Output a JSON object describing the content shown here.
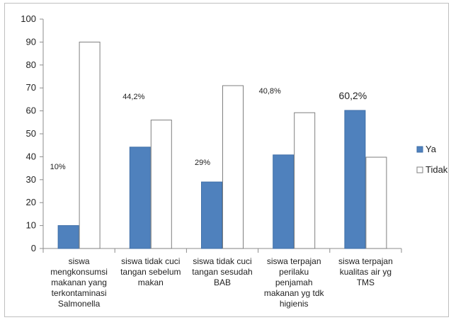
{
  "chart_data": {
    "type": "bar",
    "categories": [
      [
        "siswa",
        "mengkonsumsi",
        "makanan yang",
        "terkontaminasi",
        "Salmonella"
      ],
      [
        "siswa tidak cuci",
        "tangan sebelum",
        "makan"
      ],
      [
        "siswa tidak cuci",
        "tangan sesudah",
        "BAB"
      ],
      [
        "siswa terpajan",
        "perilaku",
        "penjamah",
        "makanan yg tdk",
        "higienis"
      ],
      [
        "siswa terpajan",
        "kualitas air yg",
        "TMS"
      ]
    ],
    "series": [
      {
        "name": "Ya",
        "values": [
          10,
          44.2,
          29,
          40.8,
          60.2
        ],
        "color": "#4f81bd"
      },
      {
        "name": "Tidak",
        "values": [
          90,
          56,
          71,
          59.2,
          39.8
        ],
        "color": "#ffffff"
      }
    ],
    "data_labels": [
      "10%",
      "44,2%",
      "29%",
      "40,8%",
      "60,2%"
    ],
    "yticks": [
      0,
      10,
      20,
      30,
      40,
      50,
      60,
      70,
      80,
      90,
      100
    ],
    "ylim": [
      0,
      100
    ],
    "grid": false,
    "legend_position": "right"
  }
}
